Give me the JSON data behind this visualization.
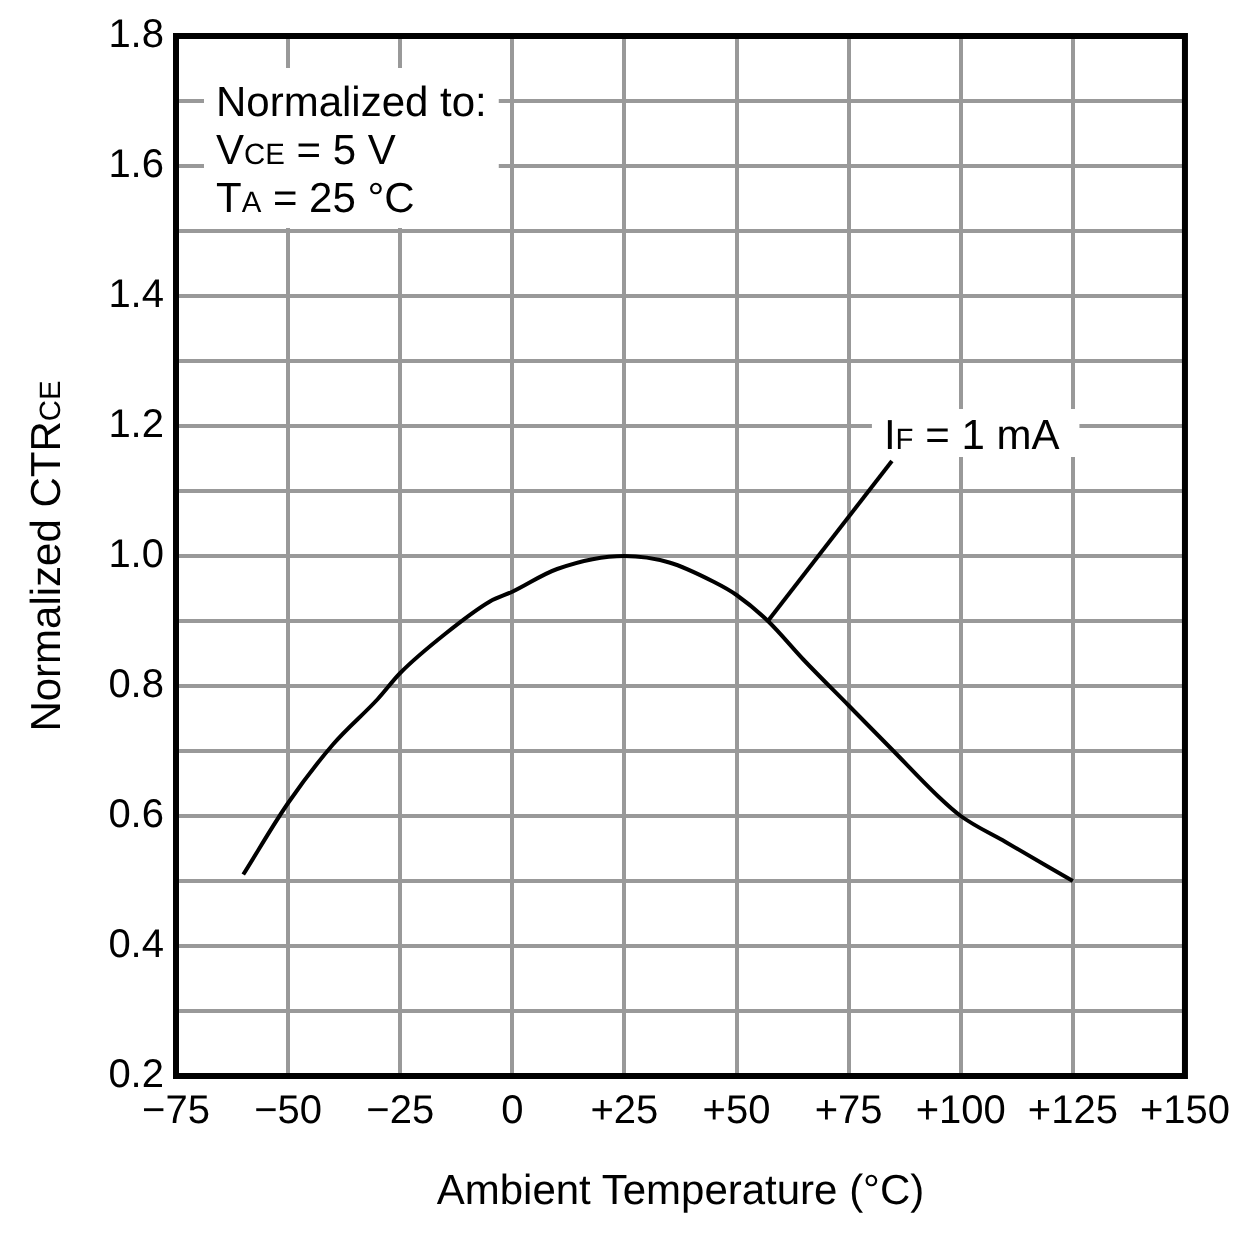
{
  "chart_data": {
    "type": "line",
    "xlabel": "Ambient Temperature (°C)",
    "ylabel": "Normalized CTR$_{CE}$",
    "xlim": [
      -75,
      150
    ],
    "xticks": [
      {
        "value": -75,
        "label": "−75"
      },
      {
        "value": -50,
        "label": "−50"
      },
      {
        "value": -25,
        "label": "−25"
      },
      0,
      {
        "value": 25,
        "label": "+25"
      },
      {
        "value": 50,
        "label": "+50"
      },
      {
        "value": 75,
        "label": "+75"
      },
      {
        "value": 100,
        "label": "+100"
      },
      {
        "value": 125,
        "label": "+125"
      },
      {
        "value": 150,
        "label": "+150"
      }
    ],
    "ylim": [
      0.2,
      1.8
    ],
    "yticks": [
      0.2,
      {
        "value": 0.3,
        "label": null
      },
      0.4,
      {
        "value": 0.5,
        "label": null
      },
      0.6,
      {
        "value": 0.7,
        "label": null
      },
      0.8,
      {
        "value": 0.9,
        "label": null
      },
      {
        "value": 1,
        "label": "1.0"
      },
      {
        "value": 1.1,
        "label": null
      },
      1.2,
      {
        "value": 1.3,
        "label": null
      },
      1.4,
      {
        "value": 1.5,
        "label": null
      },
      1.6,
      {
        "value": 1.7,
        "label": null
      },
      1.8
    ],
    "grid": true,
    "legend": false,
    "series": [
      {
        "color": "#000000",
        "x": [
          -60,
          -50,
          -40,
          -30,
          -25,
          -15,
          -5,
          0,
          10,
          25,
          35,
          45,
          50,
          57,
          65,
          75,
          85,
          95,
          100,
          110,
          125
        ],
        "values": [
          0.51,
          0.62,
          0.71,
          0.78,
          0.82,
          0.88,
          0.93,
          0.945,
          0.98,
          1.0,
          0.99,
          0.96,
          0.94,
          0.9,
          0.84,
          0.77,
          0.7,
          0.63,
          0.6,
          0.56,
          0.5
        ]
      }
    ],
    "annotations": [
      "Normalized to:",
      "V$_{CE}$ = 5 V",
      "T$_{A}$ = 25 °C",
      {
        "text": "I$_{F}$ = 1 mA",
        "x": 57,
        "y": 0.9
      }
    ]
  }
}
